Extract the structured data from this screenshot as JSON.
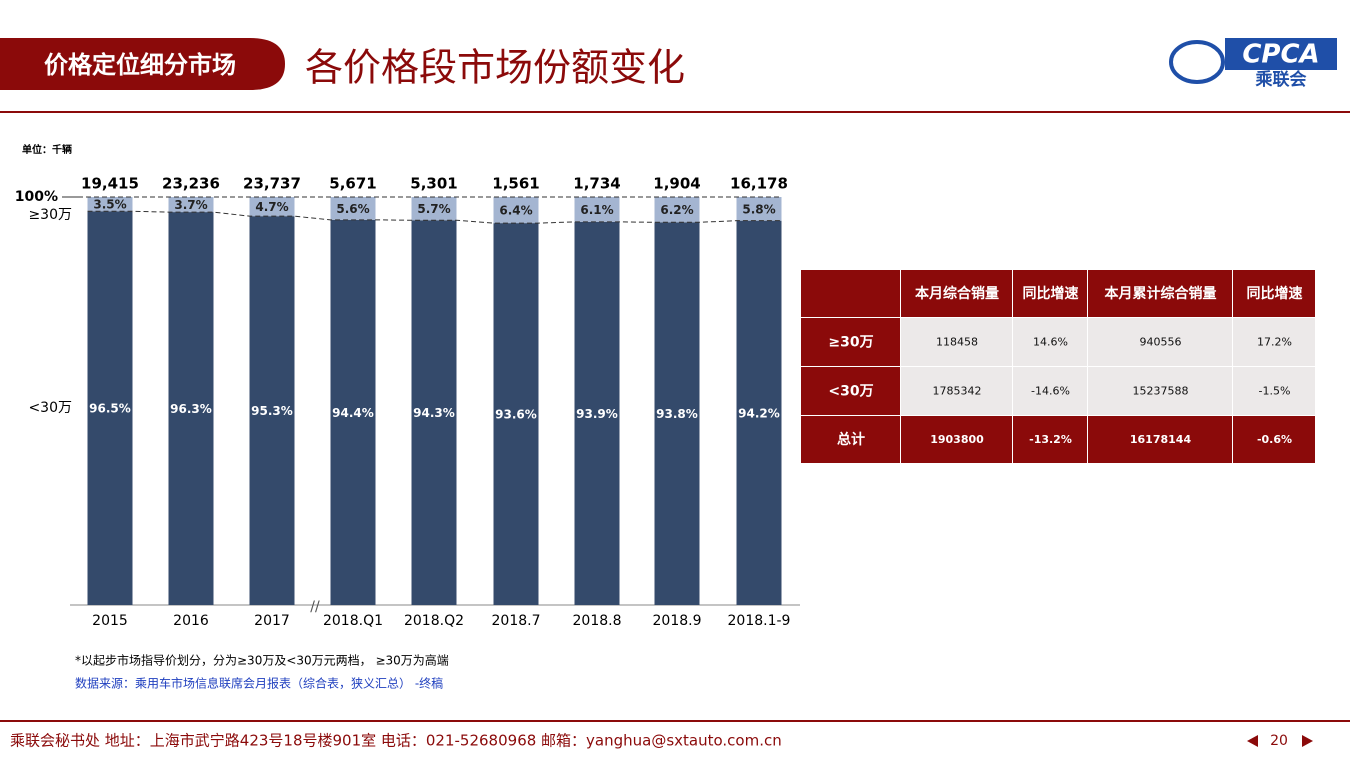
{
  "header": {
    "section": "价格定位细分市场",
    "title": "各价格段市场份额变化",
    "logo": "CPCA",
    "logo_sub": "乘联会"
  },
  "chart_data": {
    "type": "stacked_bar",
    "unit": "单位：千辆",
    "categories": [
      "2015",
      "2016",
      "2017",
      "2018.Q1",
      "2018.Q2",
      "2018.7",
      "2018.8",
      "2018.9",
      "2018.1-9"
    ],
    "series": [
      {
        "name": "<30万",
        "color": "#344a6b",
        "values": [
          96.5,
          96.3,
          95.3,
          94.4,
          94.3,
          93.6,
          93.9,
          93.8,
          94.2
        ],
        "value_labels": [
          "96.5%",
          "96.3%",
          "95.3%",
          "94.4%",
          "94.3%",
          "93.6%",
          "93.9%",
          "93.8%",
          "94.2%"
        ]
      },
      {
        "name": "≥30万",
        "color": "#a4b5d1",
        "values": [
          3.5,
          3.7,
          4.7,
          5.6,
          5.7,
          6.4,
          6.1,
          6.2,
          5.8
        ],
        "value_labels": [
          "3.5%",
          "3.7%",
          "4.7%",
          "5.6%",
          "5.7%",
          "6.4%",
          "6.1%",
          "6.2%",
          "5.8%"
        ]
      }
    ],
    "totals": {
      "values": [
        19415,
        23236,
        23737,
        5671,
        5301,
        1561,
        1734,
        1904,
        16178
      ],
      "value_labels": [
        "19,415",
        "23,236",
        "23,737",
        "5,671",
        "5,301",
        "1,561",
        "1,734",
        "1,904",
        "16,178"
      ]
    },
    "ylim": [
      0,
      100
    ],
    "yticks": [
      {
        "value": 100,
        "label": "100%"
      }
    ]
  },
  "table": {
    "header": [
      "本月综合销量",
      "同比增速",
      "本月累计综合销量",
      "同比增速"
    ],
    "rows": [
      [
        "≥30万",
        "118458",
        "14.6%",
        "940556",
        "17.2%"
      ],
      [
        "<30万",
        "1785342",
        "-14.6%",
        "15237588",
        "-1.5%"
      ],
      [
        "总计",
        "1903800",
        "-13.2%",
        "16178144",
        "-0.6%"
      ]
    ]
  },
  "notes": [
    "*以起步市场指导价划分，分为≥30万及<30万元两档， ≥30万为高端",
    "数据来源：乘用车市场信息联席会月报表（综合表，狭义汇总） -终稿"
  ],
  "footer": {
    "text": "乘联会秘书处  地址：上海市武宁路423号18号楼901室  电话：021-52680968  邮箱：yanghua@sxtauto.com.cn",
    "page": "20"
  }
}
